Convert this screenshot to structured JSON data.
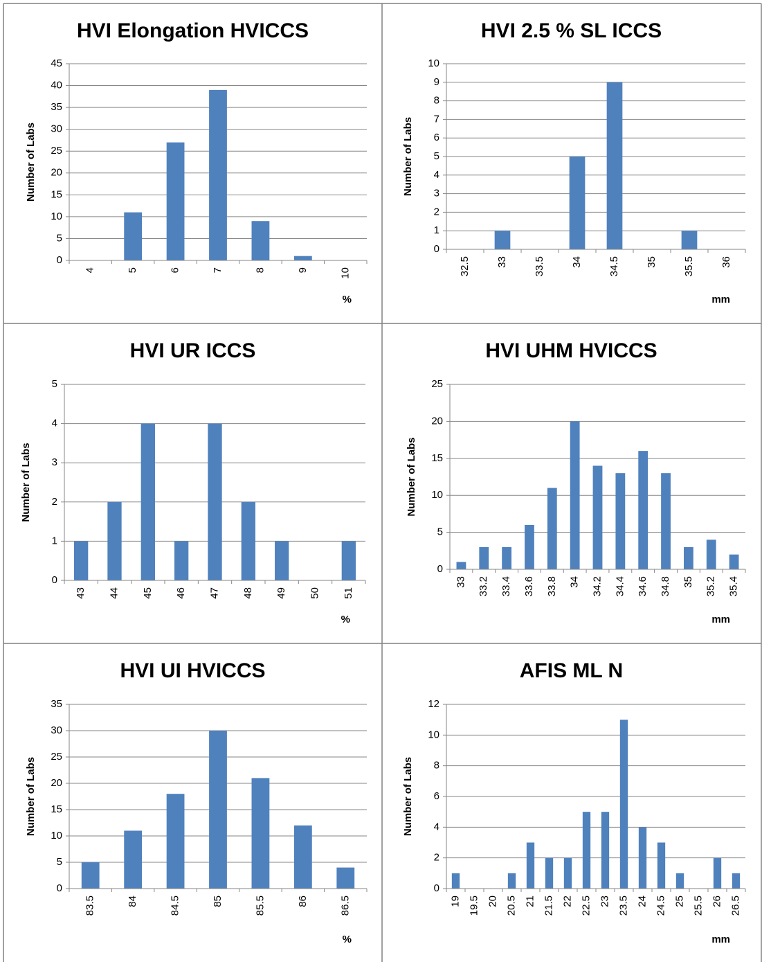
{
  "chart_data": [
    {
      "type": "bar",
      "title": "HVI Elongation HVICCS",
      "y_label": "Number of Labs",
      "x_label": "%",
      "color": "#4f81bd",
      "grid": true,
      "categories": [
        "4",
        "5",
        "6",
        "7",
        "8",
        "9",
        "10"
      ],
      "values": [
        0,
        11,
        27,
        39,
        9,
        1,
        0
      ],
      "ylim": [
        0,
        45
      ],
      "yticks": [
        0,
        5,
        10,
        15,
        20,
        25,
        30,
        35,
        40,
        45
      ]
    },
    {
      "type": "bar",
      "title": "HVI 2.5 % SL ICCS",
      "y_label": "Number of Labs",
      "x_label": "mm",
      "color": "#4f81bd",
      "grid": true,
      "categories": [
        "32.5",
        "33",
        "33.5",
        "34",
        "34.5",
        "35",
        "35.5",
        "36"
      ],
      "values": [
        0,
        1,
        0,
        5,
        9,
        0,
        1,
        0
      ],
      "ylim": [
        0,
        10
      ],
      "yticks": [
        0,
        1,
        2,
        3,
        4,
        5,
        6,
        7,
        8,
        9,
        10
      ]
    },
    {
      "type": "bar",
      "title": "HVI UR ICCS",
      "y_label": "Number of Labs",
      "x_label": "%",
      "color": "#4f81bd",
      "grid": true,
      "categories": [
        "43",
        "44",
        "45",
        "46",
        "47",
        "48",
        "49",
        "50",
        "51"
      ],
      "values": [
        1,
        2,
        4,
        1,
        4,
        2,
        1,
        0,
        1
      ],
      "ylim": [
        0,
        5
      ],
      "yticks": [
        0,
        1,
        2,
        3,
        4,
        5
      ]
    },
    {
      "type": "bar",
      "title": "HVI UHM HVICCS",
      "y_label": "Number of Labs",
      "x_label": "mm",
      "color": "#4f81bd",
      "grid": true,
      "categories": [
        "33",
        "33.2",
        "33.4",
        "33.6",
        "33.8",
        "34",
        "34.2",
        "34.4",
        "34.6",
        "34.8",
        "35",
        "35.2",
        "35.4"
      ],
      "values": [
        1,
        3,
        3,
        6,
        11,
        20,
        14,
        13,
        16,
        13,
        3,
        4,
        2
      ],
      "ylim": [
        0,
        25
      ],
      "yticks": [
        0,
        5,
        10,
        15,
        20,
        25
      ]
    },
    {
      "type": "bar",
      "title": "HVI UI HVICCS",
      "y_label": "Number of Labs",
      "x_label": "%",
      "color": "#4f81bd",
      "grid": true,
      "categories": [
        "83.5",
        "84",
        "84.5",
        "85",
        "85.5",
        "86",
        "86.5"
      ],
      "values": [
        5,
        11,
        18,
        30,
        21,
        12,
        4
      ],
      "ylim": [
        0,
        35
      ],
      "yticks": [
        0,
        5,
        10,
        15,
        20,
        25,
        30,
        35
      ]
    },
    {
      "type": "bar",
      "title": "AFIS ML N",
      "y_label": "Number of Labs",
      "x_label": "mm",
      "color": "#4f81bd",
      "grid": true,
      "categories": [
        "19",
        "19.5",
        "20",
        "20.5",
        "21",
        "21.5",
        "22",
        "22.5",
        "23",
        "23.5",
        "24",
        "24.5",
        "25",
        "25.5",
        "26",
        "26.5"
      ],
      "values": [
        1,
        0,
        0,
        1,
        3,
        2,
        2,
        5,
        5,
        11,
        4,
        3,
        1,
        0,
        2,
        1
      ],
      "ylim": [
        0,
        12
      ],
      "yticks": [
        0,
        2,
        4,
        6,
        8,
        10,
        12
      ]
    }
  ]
}
